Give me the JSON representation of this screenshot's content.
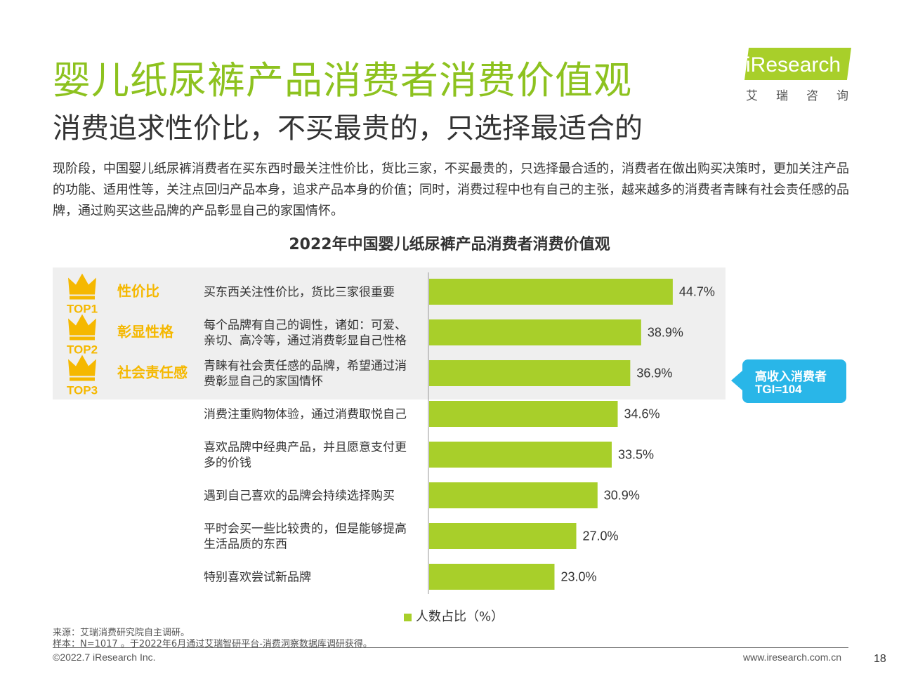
{
  "header": {
    "title": "婴儿纸尿裤产品消费者消费价值观",
    "subtitle": "消费追求性价比，不买最贵的，只选择最适合的",
    "intro": "现阶段，中国婴儿纸尿裤消费者在买东西时最关注性价比，货比三家，不买最贵的，只选择最合适的，消费者在做出购买决策时，更加关注产品的功能、适用性等，关注点回归产品本身，追求产品本身的价值；同时，消费过程中也有自己的主张，越来越多的消费者青睐有社会责任感的品牌，通过购买这些品牌的产品彰显自己的家国情怀。"
  },
  "logo": {
    "text": "iResearch",
    "cn": "艾瑞咨询"
  },
  "top_badges": [
    {
      "rank": "TOP1",
      "name": "性价比"
    },
    {
      "rank": "TOP2",
      "name": "彰显性格"
    },
    {
      "rank": "TOP3",
      "name": "社会责任感"
    }
  ],
  "callout": {
    "line1": "高收入消费者",
    "line2": "TGI=104"
  },
  "legend": {
    "label": "人数占比（%）"
  },
  "footer": {
    "source": "来源：艾瑞消费研究院自主调研。",
    "sample": "样本：N=1017 。于2022年6月通过艾瑞智研平台-消费洞察数据库调研获得。",
    "copyright": "©2022.7 iResearch Inc.",
    "website": "www.iresearch.com.cn",
    "page_number": "18"
  },
  "colors": {
    "accent": "#8dc21f",
    "bar": "#a8cf2a",
    "gold": "#f5b800",
    "callout": "#29b6e8"
  },
  "chart_data": {
    "type": "bar",
    "orientation": "horizontal",
    "title": "2022年中国婴儿纸尿裤产品消费者消费价值观",
    "categories": [
      [
        "买东西关注性价比，货比三家很重要"
      ],
      [
        "每个品牌有自己的调性，诸如：可爱、",
        "亲切、高冷等，通过消费彰显自己性格"
      ],
      [
        "青睐有社会责任感的品牌，希望通过消",
        "费彰显自己的家国情怀"
      ],
      [
        "消费注重购物体验，通过消费取悦自己"
      ],
      [
        "喜欢品牌中经典产品，并且愿意支付更",
        "多的价钱"
      ],
      [
        "遇到自己喜欢的品牌会持续选择购买"
      ],
      [
        "平时会买一些比较贵的，但是能够提高",
        "生活品质的东西"
      ],
      [
        "特别喜欢尝试新品牌"
      ]
    ],
    "series": [
      {
        "name": "人数占比（%）",
        "values": [
          44.7,
          38.9,
          36.9,
          34.6,
          33.5,
          30.9,
          27.0,
          23.0
        ]
      }
    ],
    "value_labels": [
      "44.7%",
      "38.9%",
      "36.9%",
      "34.6%",
      "33.5%",
      "30.9%",
      "27.0%",
      "23.0%"
    ],
    "xlim": [
      0,
      50
    ],
    "legend_position": "bottom"
  }
}
